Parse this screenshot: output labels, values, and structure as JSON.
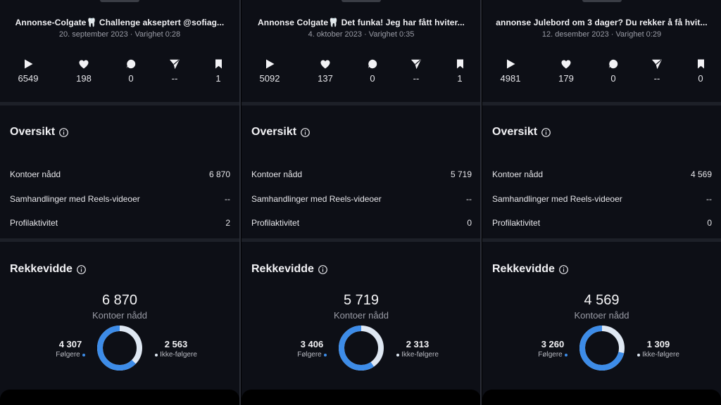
{
  "panels": [
    {
      "title": "Annonse-Colgate🦷 Challenge akseptert @sofiag...",
      "meta": "20. september 2023 · Varighet 0:28",
      "stats": {
        "plays": "6549",
        "likes": "198",
        "comments": "0",
        "shares": "--",
        "saves": "1"
      },
      "overview": {
        "title": "Oversikt",
        "rows": [
          {
            "label": "Kontoer nådd",
            "value": "6 870"
          },
          {
            "label": "Samhandlinger med Reels-videoer",
            "value": "--"
          },
          {
            "label": "Profilaktivitet",
            "value": "2"
          }
        ]
      },
      "reach": {
        "title": "Rekkevidde",
        "total": "6 870",
        "total_label": "Kontoer nådd",
        "followers": "4 307",
        "followers_label": "Følgere",
        "nonfollowers": "2 563",
        "nonfollowers_label": "Ikke-følgere",
        "followers_fraction": 0.627
      }
    },
    {
      "title": "Annonse Colgate🦷 Det funka! Jeg har fått hviter...",
      "meta": "4. oktober 2023 · Varighet 0:35",
      "stats": {
        "plays": "5092",
        "likes": "137",
        "comments": "0",
        "shares": "--",
        "saves": "1"
      },
      "overview": {
        "title": "Oversikt",
        "rows": [
          {
            "label": "Kontoer nådd",
            "value": "5 719"
          },
          {
            "label": "Samhandlinger med Reels-videoer",
            "value": "--"
          },
          {
            "label": "Profilaktivitet",
            "value": "0"
          }
        ]
      },
      "reach": {
        "title": "Rekkevidde",
        "total": "5 719",
        "total_label": "Kontoer nådd",
        "followers": "3 406",
        "followers_label": "Følgere",
        "nonfollowers": "2 313",
        "nonfollowers_label": "Ikke-følgere",
        "followers_fraction": 0.596
      }
    },
    {
      "title": "annonse Julebord om 3 dager? Du rekker å få hvit...",
      "meta": "12. desember 2023 · Varighet 0:29",
      "stats": {
        "plays": "4981",
        "likes": "179",
        "comments": "0",
        "shares": "--",
        "saves": "0"
      },
      "overview": {
        "title": "Oversikt",
        "rows": [
          {
            "label": "Kontoer nådd",
            "value": "4 569"
          },
          {
            "label": "Samhandlinger med Reels-videoer",
            "value": "--"
          },
          {
            "label": "Profilaktivitet",
            "value": "0"
          }
        ]
      },
      "reach": {
        "title": "Rekkevidde",
        "total": "4 569",
        "total_label": "Kontoer nådd",
        "followers": "3 260",
        "followers_label": "Følgere",
        "nonfollowers": "1 309",
        "nonfollowers_label": "Ikke-følgere",
        "followers_fraction": 0.714
      }
    }
  ],
  "icons": {
    "plays": "play-icon",
    "likes": "heart-icon",
    "comments": "comment-icon",
    "shares": "share-icon",
    "saves": "bookmark-icon",
    "info": "info-icon"
  },
  "colors": {
    "followers": "#3d8ce8",
    "nonfollowers": "#dfe8f3",
    "background": "#0d0f16"
  }
}
